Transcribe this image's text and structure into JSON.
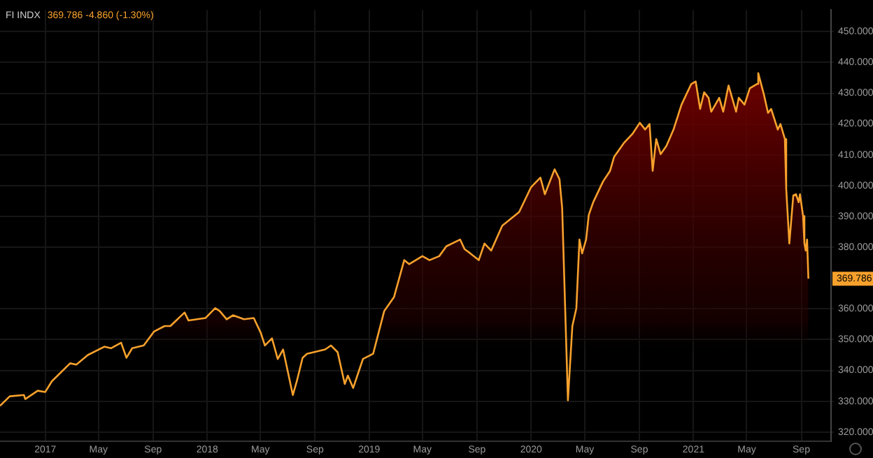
{
  "chart_data": {
    "type": "area",
    "title": "FI INDX",
    "subtitle": "369.786 -4.860 (-1.30%)",
    "x": [
      "2016-09-21",
      "2016-10-13",
      "2016-11-14",
      "2016-11-17",
      "2016-12-15",
      "2017-01-01",
      "2017-01-16",
      "2017-02-26",
      "2017-03-12",
      "2017-04-07",
      "2017-05-14",
      "2017-05-29",
      "2017-06-21",
      "2017-07-03",
      "2017-07-16",
      "2017-08-11",
      "2017-09-03",
      "2017-09-27",
      "2017-10-10",
      "2017-11-11",
      "2017-11-20",
      "2017-12-28",
      "2018-01-19",
      "2018-01-29",
      "2018-02-14",
      "2018-02-28",
      "2018-03-25",
      "2018-04-16",
      "2018-05-02",
      "2018-05-11",
      "2018-05-27",
      "2018-06-09",
      "2018-06-21",
      "2018-07-13",
      "2018-07-22",
      "2018-08-04",
      "2018-08-14",
      "2018-09-24",
      "2018-10-07",
      "2018-10-22",
      "2018-11-07",
      "2018-11-14",
      "2018-11-26",
      "2018-12-18",
      "2019-01-10",
      "2019-01-19",
      "2019-02-04",
      "2019-02-26",
      "2019-03-21",
      "2019-04-01",
      "2019-05-01",
      "2019-05-17",
      "2019-06-08",
      "2019-06-24",
      "2019-07-25",
      "2019-08-04",
      "2019-08-17",
      "2019-09-05",
      "2019-09-18",
      "2019-10-03",
      "2019-10-28",
      "2019-12-05",
      "2020-01-01",
      "2020-01-22",
      "2020-02-01",
      "2020-02-23",
      "2020-03-05",
      "2020-03-11",
      "2020-03-24",
      "2020-04-03",
      "2020-04-12",
      "2020-04-19",
      "2020-04-25",
      "2020-05-04",
      "2020-05-10",
      "2020-05-20",
      "2020-06-11",
      "2020-06-27",
      "2020-07-06",
      "2020-07-28",
      "2020-08-17",
      "2020-09-02",
      "2020-09-14",
      "2020-09-24",
      "2020-10-01",
      "2020-10-09",
      "2020-10-19",
      "2020-11-01",
      "2020-11-17",
      "2020-12-05",
      "2020-12-27",
      "2021-01-06",
      "2021-01-16",
      "2021-01-25",
      "2021-02-04",
      "2021-02-10",
      "2021-02-28",
      "2021-03-09",
      "2021-03-21",
      "2021-04-07",
      "2021-04-13",
      "2021-04-26",
      "2021-05-08",
      "2021-05-24",
      "2021-05-27",
      "2021-06-09",
      "2021-06-18",
      "2021-06-25",
      "2021-07-10",
      "2021-07-16",
      "2021-07-26",
      "2021-07-29",
      "2021-08-05",
      "2021-08-14",
      "2021-08-20",
      "2021-08-26",
      "2021-08-29",
      "2021-09-05",
      "2021-09-08",
      "2021-09-11",
      "2021-09-14",
      "2021-09-17"
    ],
    "series": [
      {
        "color": "#f7a12c",
        "values": [
          328.5,
          331.6,
          332,
          330.7,
          333.4,
          333,
          336.5,
          342.3,
          341.9,
          345,
          347.7,
          347.2,
          349,
          344.1,
          347.2,
          348.1,
          352.6,
          354.4,
          354.4,
          358.8,
          356.2,
          357,
          360.2,
          359.3,
          356.6,
          357.9,
          356.6,
          357,
          352.1,
          348.1,
          350.4,
          343.7,
          346.8,
          332,
          336.5,
          344.1,
          345.4,
          346.8,
          348.1,
          345.9,
          335.6,
          338.3,
          334.3,
          343.7,
          345.4,
          350.4,
          359.3,
          363.8,
          375.8,
          374.5,
          377.1,
          375.8,
          377.1,
          380.3,
          382.5,
          379.4,
          378,
          375.8,
          381.2,
          378.9,
          387,
          391.4,
          399.5,
          402.6,
          397.2,
          405.3,
          402.1,
          392.8,
          330.3,
          354.4,
          360.2,
          382.5,
          378,
          382.5,
          390.5,
          394.6,
          401.3,
          404.8,
          409.3,
          413.8,
          416.9,
          420.4,
          418.2,
          420,
          404.8,
          415.1,
          410.2,
          412.9,
          418.2,
          426.3,
          433,
          433.8,
          424.9,
          430.3,
          428.5,
          424,
          428.5,
          424,
          432.5,
          424,
          428.5,
          426.3,
          431.6,
          433,
          436.5,
          429.4,
          423.6,
          424.9,
          418.2,
          420,
          415.1,
          399,
          381.2,
          396.8,
          397.2,
          394.6,
          397.2,
          390.1,
          381.2,
          378.9,
          382.5,
          369.786
        ]
      }
    ],
    "xlim": [
      "2016-09-21",
      "2021-11-07"
    ],
    "xticks": [
      {
        "value": "2017-01-01",
        "label": "2017"
      },
      {
        "value": "2017-05-01",
        "label": "May"
      },
      {
        "value": "2017-09-01",
        "label": "Sep"
      },
      {
        "value": "2018-01-01",
        "label": "2018"
      },
      {
        "value": "2018-05-01",
        "label": "May"
      },
      {
        "value": "2018-09-01",
        "label": "Sep"
      },
      {
        "value": "2019-01-01",
        "label": "2019"
      },
      {
        "value": "2019-05-01",
        "label": "May"
      },
      {
        "value": "2019-09-01",
        "label": "Sep"
      },
      {
        "value": "2020-01-01",
        "label": "2020"
      },
      {
        "value": "2020-05-01",
        "label": "May"
      },
      {
        "value": "2020-09-01",
        "label": "Sep"
      },
      {
        "value": "2021-01-01",
        "label": "2021"
      },
      {
        "value": "2021-05-01",
        "label": "May"
      },
      {
        "value": "2021-09-01",
        "label": "Sep"
      }
    ],
    "ylim": [
      317,
      457
    ],
    "yticks": [
      {
        "value": 320,
        "label": "320.000"
      },
      {
        "value": 330,
        "label": "330.000"
      },
      {
        "value": 340,
        "label": "340.000"
      },
      {
        "value": 350,
        "label": "350.000"
      },
      {
        "value": 360,
        "label": "360.000"
      },
      {
        "value": 380,
        "label": "380.000"
      },
      {
        "value": 390,
        "label": "390.000"
      },
      {
        "value": 400,
        "label": "400.000"
      },
      {
        "value": 410,
        "label": "410.000"
      },
      {
        "value": 420,
        "label": "420.000"
      },
      {
        "value": 430,
        "label": "430.000"
      },
      {
        "value": 440,
        "label": "440.000"
      },
      {
        "value": 450,
        "label": "450.000"
      }
    ],
    "annotations": [
      {
        "text": "369.786",
        "y": 369.786
      }
    ],
    "grid": true,
    "legend": false
  }
}
